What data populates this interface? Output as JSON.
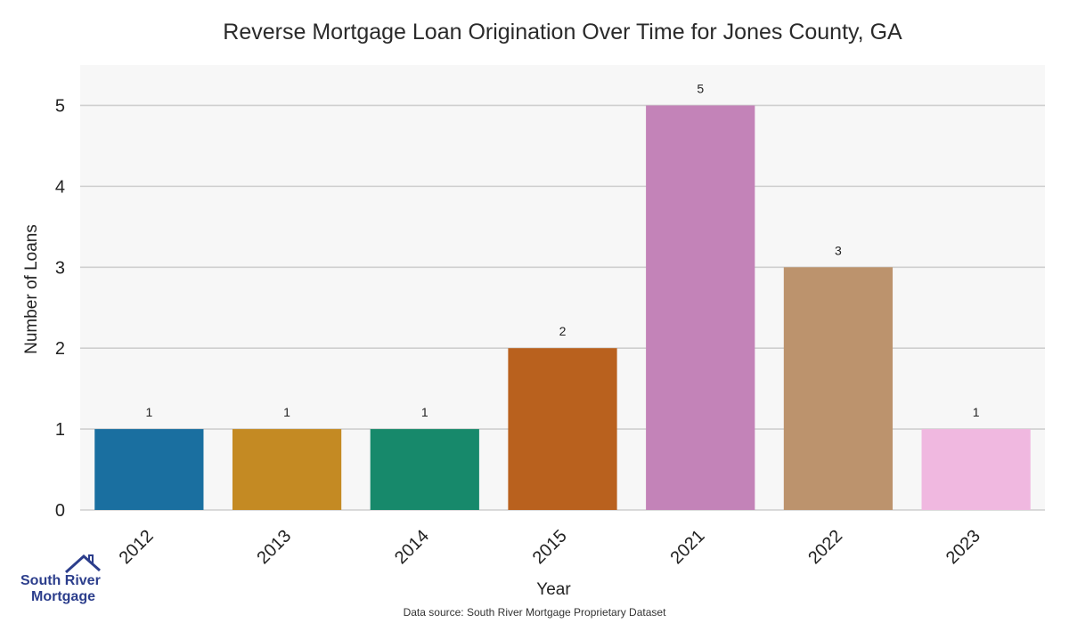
{
  "chart_data": {
    "type": "bar",
    "title": "Reverse Mortgage Loan Origination Over Time for Jones County, GA",
    "xlabel": "Year",
    "ylabel": "Number of Loans",
    "categories": [
      "2012",
      "2013",
      "2014",
      "2015",
      "2021",
      "2022",
      "2023"
    ],
    "values": [
      1,
      1,
      1,
      2,
      5,
      3,
      1
    ],
    "colors": [
      "#1a6fa0",
      "#c48a23",
      "#17896b",
      "#b9611e",
      "#c383b8",
      "#bc936d",
      "#f0b8e0"
    ],
    "yticks": [
      0,
      1,
      2,
      3,
      4,
      5
    ],
    "ylim": [
      0,
      5.5
    ],
    "grid": true,
    "legend": false
  },
  "logo": {
    "line1": "South River",
    "line2": "Mortgage",
    "icon": "house-roof-icon"
  },
  "source": "Data source: South River Mortgage Proprietary Dataset"
}
